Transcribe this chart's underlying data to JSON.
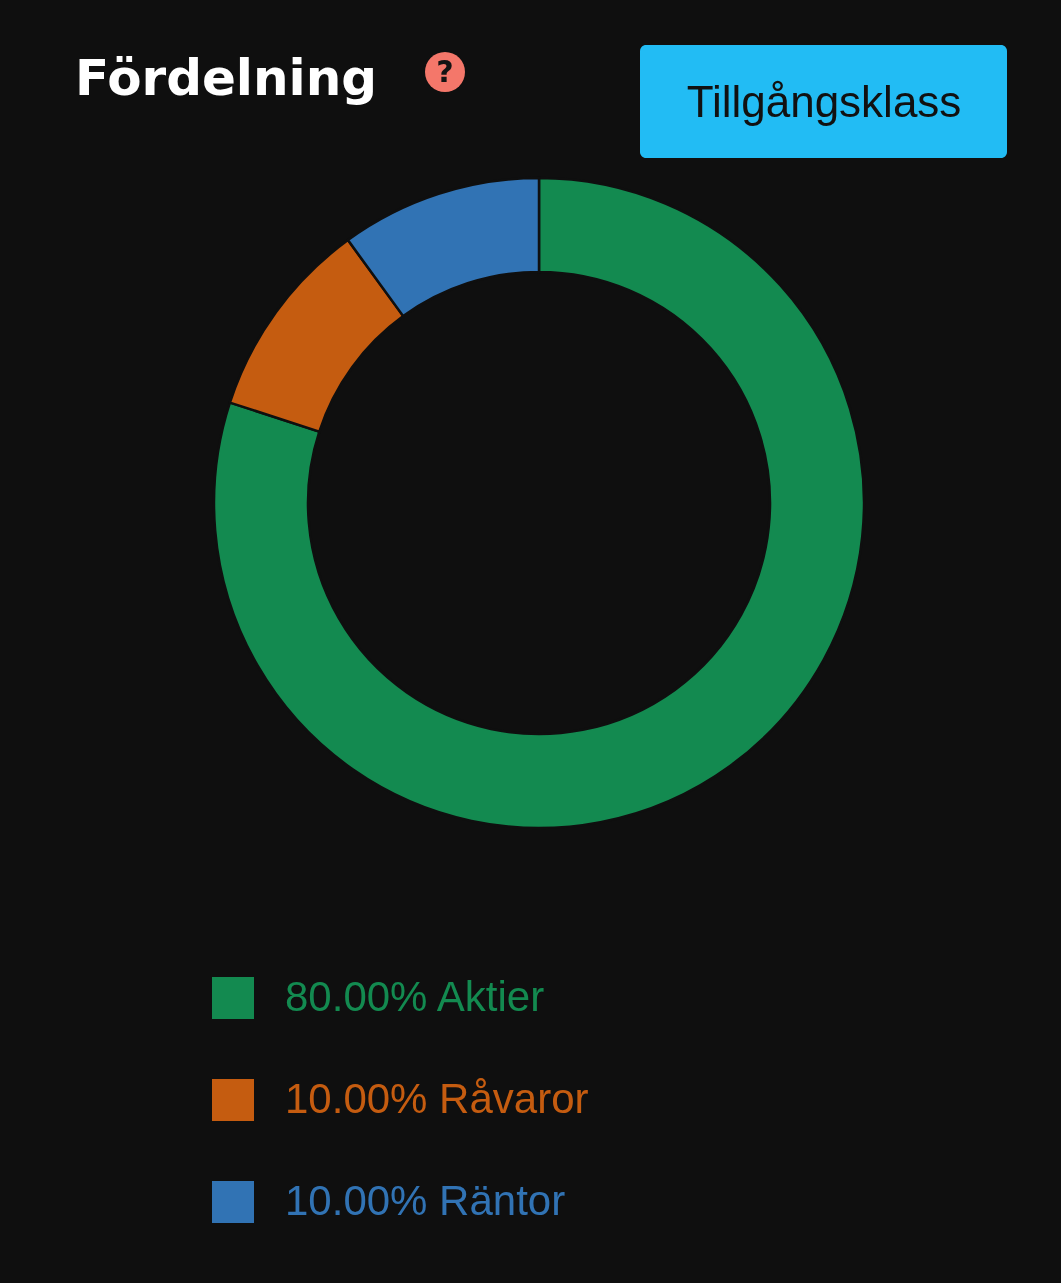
{
  "chart_data": {
    "type": "donut",
    "title": "Fördelning",
    "categories": [
      "Aktier",
      "Råvaror",
      "Räntor"
    ],
    "values": [
      80,
      10,
      10
    ],
    "colors": [
      "#138a50",
      "#c55c10",
      "#3173b4"
    ],
    "value_labels": [
      "80.00%",
      "10.00%",
      "10.00%"
    ],
    "legend": "bottom",
    "annotations": [
      "?",
      "Tillgångsklass"
    ]
  }
}
